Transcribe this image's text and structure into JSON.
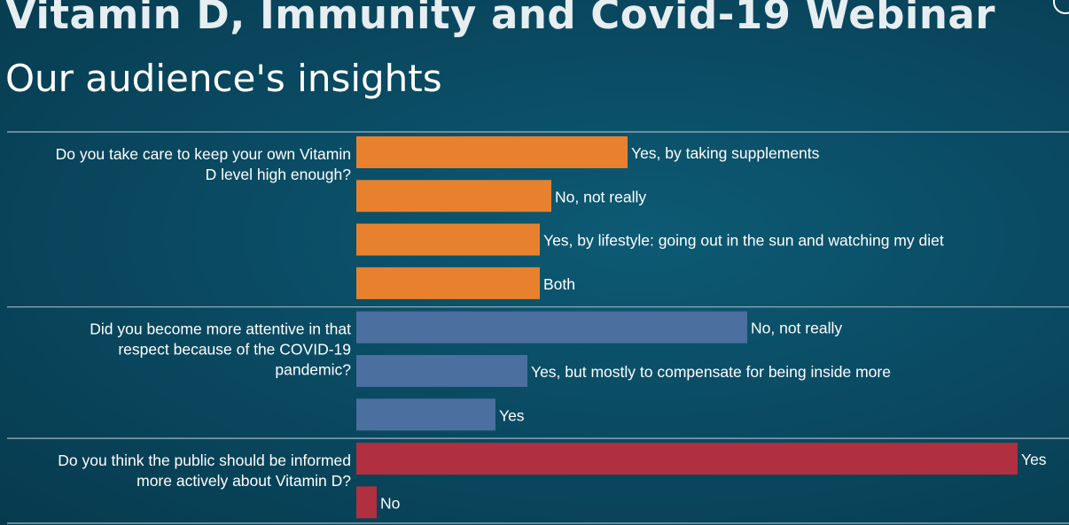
{
  "header": {
    "title": "Vitamin D, Immunity and Covid-19 Webinar",
    "subtitle": "Our audience's insights"
  },
  "chart_data": {
    "type": "bar",
    "orientation": "horizontal",
    "title": "Our audience's insights",
    "xlabel": "",
    "ylabel": "",
    "grid": false,
    "value_unit": "relative responses (approx., read from bar lengths; no axis shown)",
    "groups": [
      {
        "question": "Do you take care to keep your own Vitamin D level high enough?",
        "question_lines": [
          "Do you take care to keep your own Vitamin",
          "D level high enough?"
        ],
        "color": "#e8812e",
        "categories": [
          "Yes, by taking supplements",
          "No, not really",
          "Yes, by lifestyle: going out in the sun and watching my diet",
          "Both"
        ],
        "values": [
          306,
          220,
          207,
          207
        ]
      },
      {
        "question": "Did you become more attentive in that respect because of the COVID-19 pandemic?",
        "question_lines": [
          "Did you become more attentive in that",
          "respect because of the COVID-19",
          "pandemic?"
        ],
        "color": "#4b6f9e",
        "categories": [
          "No, not really",
          "Yes, but mostly to compensate for being inside more",
          "Yes"
        ],
        "values": [
          441,
          193,
          157
        ]
      },
      {
        "question": "Do you think the public should be informed more actively about Vitamin D?",
        "question_lines": [
          "Do you think the public should be informed",
          "more actively about Vitamin D?"
        ],
        "color": "#b03040",
        "categories": [
          "Yes",
          "No"
        ],
        "values": [
          746,
          23
        ]
      }
    ]
  }
}
